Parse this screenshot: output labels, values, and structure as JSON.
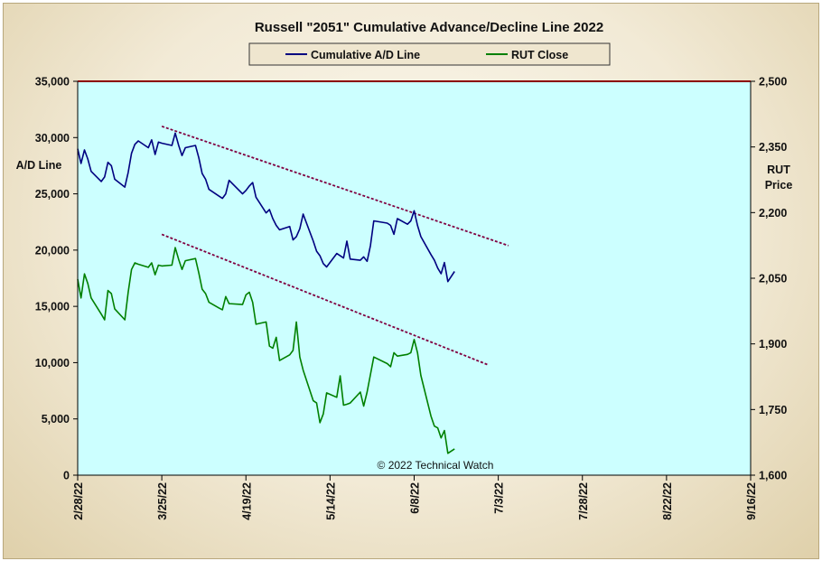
{
  "chart_data": {
    "type": "line",
    "title": "Russell \"2051\" Cumulative Advance/Decline Line 2022",
    "annotation": "© 2022 Technical Watch",
    "left_axis": {
      "label": "A/D Line",
      "ylim": [
        0,
        35000
      ],
      "ticks": [
        0,
        5000,
        10000,
        15000,
        20000,
        25000,
        30000,
        35000
      ],
      "tick_labels": [
        "0",
        "5,000",
        "10,000",
        "15,000",
        "20,000",
        "25,000",
        "30,000",
        "35,000"
      ]
    },
    "right_axis": {
      "label_lines": [
        "RUT",
        "Price"
      ],
      "ylim": [
        1600,
        2500
      ],
      "ticks": [
        1600,
        1750,
        1900,
        2050,
        2200,
        2350,
        2500
      ],
      "tick_labels": [
        "1,600",
        "1,750",
        "1,900",
        "2,050",
        "2,200",
        "2,350",
        "2,500"
      ]
    },
    "x_axis": {
      "start": "2022-02-28",
      "end": "2022-09-16",
      "ticks": [
        "2022-02-28",
        "2022-03-25",
        "2022-04-19",
        "2022-05-14",
        "2022-06-08",
        "2022-07-03",
        "2022-07-28",
        "2022-08-22",
        "2022-09-16"
      ],
      "tick_labels": [
        "2/28/22",
        "3/25/22",
        "4/19/22",
        "5/14/22",
        "6/8/22",
        "7/3/22",
        "7/28/22",
        "8/22/22",
        "9/16/22"
      ]
    },
    "legend": {
      "placement": "top-center"
    },
    "grid": false,
    "colors": {
      "plot_bg": "#ccffff",
      "ad_line": "#000080",
      "rut_line": "#008000",
      "trend_line": "#800040",
      "top_border": "#8b0000"
    },
    "series": [
      {
        "name": "Cumulative A/D Line",
        "axis": "left",
        "color": "#000080",
        "points": [
          [
            "2022-02-28",
            29000
          ],
          [
            "2022-03-01",
            27700
          ],
          [
            "2022-03-02",
            28900
          ],
          [
            "2022-03-03",
            28100
          ],
          [
            "2022-03-04",
            27000
          ],
          [
            "2022-03-07",
            26100
          ],
          [
            "2022-03-08",
            26500
          ],
          [
            "2022-03-09",
            27800
          ],
          [
            "2022-03-10",
            27500
          ],
          [
            "2022-03-11",
            26300
          ],
          [
            "2022-03-14",
            25600
          ],
          [
            "2022-03-15",
            26900
          ],
          [
            "2022-03-16",
            28600
          ],
          [
            "2022-03-17",
            29400
          ],
          [
            "2022-03-18",
            29700
          ],
          [
            "2022-03-21",
            29100
          ],
          [
            "2022-03-22",
            29800
          ],
          [
            "2022-03-23",
            28500
          ],
          [
            "2022-03-24",
            29600
          ],
          [
            "2022-03-25",
            29500
          ],
          [
            "2022-03-28",
            29300
          ],
          [
            "2022-03-29",
            30400
          ],
          [
            "2022-03-30",
            29300
          ],
          [
            "2022-03-31",
            28400
          ],
          [
            "2022-04-01",
            29100
          ],
          [
            "2022-04-04",
            29300
          ],
          [
            "2022-04-05",
            28200
          ],
          [
            "2022-04-06",
            26800
          ],
          [
            "2022-04-07",
            26300
          ],
          [
            "2022-04-08",
            25400
          ],
          [
            "2022-04-11",
            24800
          ],
          [
            "2022-04-12",
            24600
          ],
          [
            "2022-04-13",
            25000
          ],
          [
            "2022-04-14",
            26200
          ],
          [
            "2022-04-18",
            25000
          ],
          [
            "2022-04-19",
            25300
          ],
          [
            "2022-04-20",
            25700
          ],
          [
            "2022-04-21",
            26000
          ],
          [
            "2022-04-22",
            24700
          ],
          [
            "2022-04-25",
            23300
          ],
          [
            "2022-04-26",
            23600
          ],
          [
            "2022-04-27",
            22800
          ],
          [
            "2022-04-28",
            22200
          ],
          [
            "2022-04-29",
            21800
          ],
          [
            "2022-05-02",
            22100
          ],
          [
            "2022-05-03",
            20900
          ],
          [
            "2022-05-04",
            21200
          ],
          [
            "2022-05-05",
            21900
          ],
          [
            "2022-05-06",
            23200
          ],
          [
            "2022-05-09",
            20800
          ],
          [
            "2022-05-10",
            19900
          ],
          [
            "2022-05-11",
            19500
          ],
          [
            "2022-05-12",
            18800
          ],
          [
            "2022-05-13",
            18500
          ],
          [
            "2022-05-16",
            19700
          ],
          [
            "2022-05-17",
            19500
          ],
          [
            "2022-05-18",
            19300
          ],
          [
            "2022-05-19",
            20800
          ],
          [
            "2022-05-20",
            19200
          ],
          [
            "2022-05-23",
            19100
          ],
          [
            "2022-05-24",
            19400
          ],
          [
            "2022-05-25",
            19000
          ],
          [
            "2022-05-26",
            20400
          ],
          [
            "2022-05-27",
            22600
          ],
          [
            "2022-05-31",
            22400
          ],
          [
            "2022-06-01",
            22200
          ],
          [
            "2022-06-02",
            21400
          ],
          [
            "2022-06-03",
            22800
          ],
          [
            "2022-06-06",
            22300
          ],
          [
            "2022-06-07",
            22600
          ],
          [
            "2022-06-08",
            23500
          ],
          [
            "2022-06-09",
            22200
          ],
          [
            "2022-06-10",
            21200
          ],
          [
            "2022-06-13",
            19600
          ],
          [
            "2022-06-14",
            19100
          ],
          [
            "2022-06-15",
            18400
          ],
          [
            "2022-06-16",
            17900
          ],
          [
            "2022-06-17",
            18900
          ],
          [
            "2022-06-18",
            17200
          ],
          [
            "2022-06-20",
            18100
          ]
        ]
      },
      {
        "name": "RUT Close",
        "axis": "right",
        "color": "#008000",
        "points": [
          [
            "2022-02-28",
            2048
          ],
          [
            "2022-03-01",
            2005
          ],
          [
            "2022-03-02",
            2060
          ],
          [
            "2022-03-03",
            2038
          ],
          [
            "2022-03-04",
            2005
          ],
          [
            "2022-03-07",
            1968
          ],
          [
            "2022-03-08",
            1955
          ],
          [
            "2022-03-09",
            2022
          ],
          [
            "2022-03-10",
            2015
          ],
          [
            "2022-03-11",
            1980
          ],
          [
            "2022-03-14",
            1955
          ],
          [
            "2022-03-15",
            2018
          ],
          [
            "2022-03-16",
            2070
          ],
          [
            "2022-03-17",
            2085
          ],
          [
            "2022-03-18",
            2082
          ],
          [
            "2022-03-21",
            2075
          ],
          [
            "2022-03-22",
            2085
          ],
          [
            "2022-03-23",
            2058
          ],
          [
            "2022-03-24",
            2080
          ],
          [
            "2022-03-25",
            2078
          ],
          [
            "2022-03-28",
            2080
          ],
          [
            "2022-03-29",
            2120
          ],
          [
            "2022-03-30",
            2093
          ],
          [
            "2022-03-31",
            2070
          ],
          [
            "2022-04-01",
            2090
          ],
          [
            "2022-04-04",
            2095
          ],
          [
            "2022-04-05",
            2062
          ],
          [
            "2022-04-06",
            2025
          ],
          [
            "2022-04-07",
            2015
          ],
          [
            "2022-04-08",
            1995
          ],
          [
            "2022-04-11",
            1982
          ],
          [
            "2022-04-12",
            1978
          ],
          [
            "2022-04-13",
            2008
          ],
          [
            "2022-04-14",
            1992
          ],
          [
            "2022-04-18",
            1990
          ],
          [
            "2022-04-19",
            2012
          ],
          [
            "2022-04-20",
            2018
          ],
          [
            "2022-04-21",
            1995
          ],
          [
            "2022-04-22",
            1945
          ],
          [
            "2022-04-25",
            1950
          ],
          [
            "2022-04-26",
            1895
          ],
          [
            "2022-04-27",
            1890
          ],
          [
            "2022-04-28",
            1915
          ],
          [
            "2022-04-29",
            1862
          ],
          [
            "2022-05-02",
            1875
          ],
          [
            "2022-05-03",
            1885
          ],
          [
            "2022-05-04",
            1950
          ],
          [
            "2022-05-05",
            1870
          ],
          [
            "2022-05-06",
            1840
          ],
          [
            "2022-05-09",
            1770
          ],
          [
            "2022-05-10",
            1765
          ],
          [
            "2022-05-11",
            1720
          ],
          [
            "2022-05-12",
            1740
          ],
          [
            "2022-05-13",
            1788
          ],
          [
            "2022-05-16",
            1778
          ],
          [
            "2022-05-17",
            1827
          ],
          [
            "2022-05-18",
            1760
          ],
          [
            "2022-05-19",
            1762
          ],
          [
            "2022-05-20",
            1765
          ],
          [
            "2022-05-23",
            1790
          ],
          [
            "2022-05-24",
            1758
          ],
          [
            "2022-05-25",
            1790
          ],
          [
            "2022-05-26",
            1830
          ],
          [
            "2022-05-27",
            1870
          ],
          [
            "2022-05-31",
            1855
          ],
          [
            "2022-06-01",
            1848
          ],
          [
            "2022-06-02",
            1880
          ],
          [
            "2022-06-03",
            1872
          ],
          [
            "2022-06-06",
            1876
          ],
          [
            "2022-06-07",
            1880
          ],
          [
            "2022-06-08",
            1910
          ],
          [
            "2022-06-09",
            1880
          ],
          [
            "2022-06-10",
            1828
          ],
          [
            "2022-06-13",
            1735
          ],
          [
            "2022-06-14",
            1712
          ],
          [
            "2022-06-15",
            1708
          ],
          [
            "2022-06-16",
            1685
          ],
          [
            "2022-06-17",
            1702
          ],
          [
            "2022-06-18",
            1650
          ],
          [
            "2022-06-20",
            1660
          ]
        ]
      }
    ],
    "trend_lines": [
      {
        "axis": "left",
        "from": [
          "2022-03-25",
          31000
        ],
        "to": [
          "2022-07-06",
          20400
        ]
      },
      {
        "axis": "left",
        "from": [
          "2022-03-25",
          21400
        ],
        "to": [
          "2022-06-30",
          9800
        ]
      }
    ]
  }
}
